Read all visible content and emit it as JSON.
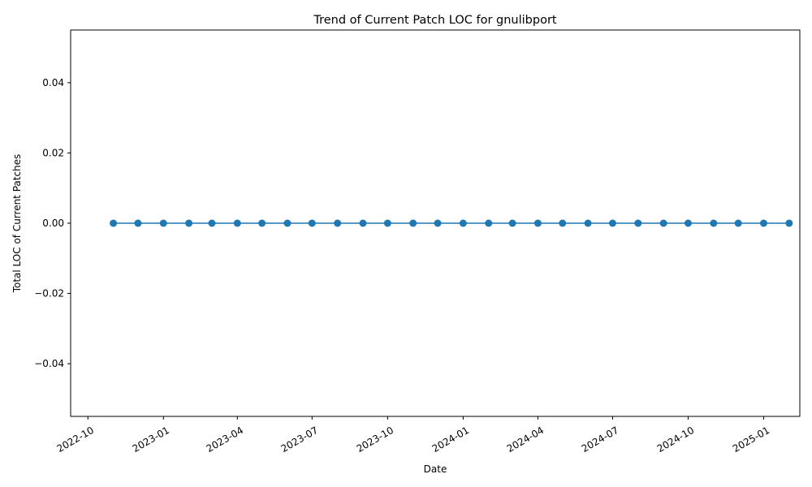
{
  "chart_data": {
    "type": "line",
    "title": "Trend of Current Patch LOC for gnulibport",
    "xlabel": "Date",
    "ylabel": "Total LOC of Current Patches",
    "x_ticks": [
      "2022-10",
      "2023-01",
      "2023-04",
      "2023-07",
      "2023-10",
      "2024-01",
      "2024-04",
      "2024-07",
      "2024-10",
      "2025-01"
    ],
    "y_ticks": [
      "−0.04",
      "−0.02",
      "0.00",
      "0.02",
      "0.04"
    ],
    "y_tick_values": [
      -0.04,
      -0.02,
      0.0,
      0.02,
      0.04
    ],
    "xlim": [
      "2022-09-10",
      "2025-02-14"
    ],
    "ylim": [
      -0.055,
      0.055
    ],
    "grid": false,
    "legend": "none",
    "color": "#1f77b4",
    "series": [
      {
        "x": [
          "2022-11-01",
          "2022-12-01",
          "2023-01-01",
          "2023-02-01",
          "2023-03-01",
          "2023-04-01",
          "2023-05-01",
          "2023-06-01",
          "2023-07-01",
          "2023-08-01",
          "2023-09-01",
          "2023-10-01",
          "2023-11-01",
          "2023-12-01",
          "2024-01-01",
          "2024-02-01",
          "2024-03-01",
          "2024-04-01",
          "2024-05-01",
          "2024-06-01",
          "2024-07-01",
          "2024-08-01",
          "2024-09-01",
          "2024-10-01",
          "2024-11-01",
          "2024-12-01",
          "2025-01-01",
          "2025-02-01"
        ],
        "values": [
          0,
          0,
          0,
          0,
          0,
          0,
          0,
          0,
          0,
          0,
          0,
          0,
          0,
          0,
          0,
          0,
          0,
          0,
          0,
          0,
          0,
          0,
          0,
          0,
          0,
          0,
          0,
          0
        ]
      }
    ]
  }
}
